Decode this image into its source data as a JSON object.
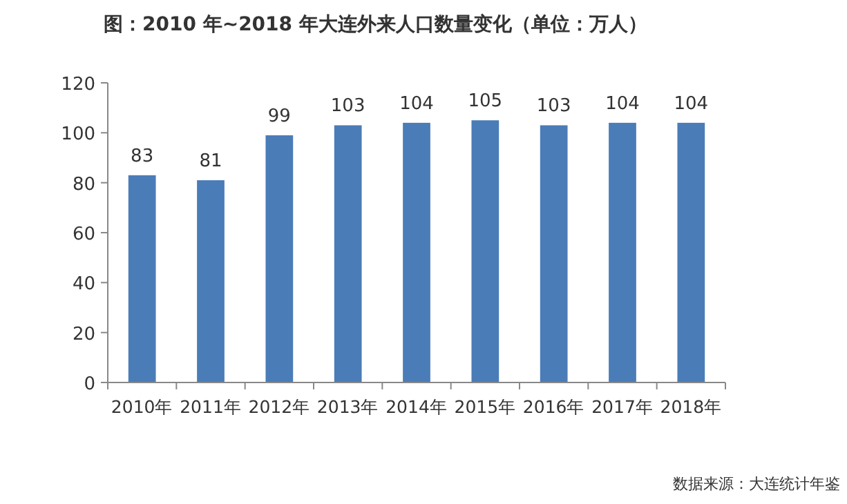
{
  "chart_data": {
    "type": "bar",
    "title": "图：2010 年~2018 年大连外来人口数量变化（单位：万人）",
    "categories": [
      "2010年",
      "2011年",
      "2012年",
      "2013年",
      "2014年",
      "2015年",
      "2016年",
      "2017年",
      "2018年"
    ],
    "values": [
      83,
      81,
      99,
      103,
      104,
      105,
      103,
      104,
      104
    ],
    "color": "#4a7cb8",
    "ylim": [
      0,
      120
    ],
    "yticks": [
      0,
      20,
      40,
      60,
      80,
      100,
      120
    ],
    "data_labels": true,
    "annotations": [
      "数据来源：大连统计年鉴"
    ]
  }
}
